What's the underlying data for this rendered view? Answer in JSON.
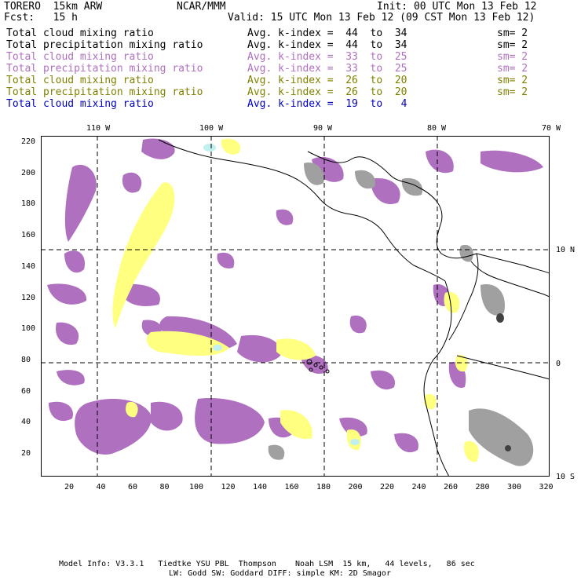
{
  "header": {
    "model": "TORERO  15km ARW",
    "org": "NCAR/MMM",
    "init": "Init: 00 UTC Mon 13 Feb 12",
    "fcst": "Fcst:   15 h",
    "valid": "Valid: 15 UTC Mon 13 Feb 12 (09 CST Mon 13 Feb 12)"
  },
  "legend": [
    {
      "field": "Total cloud mixing ratio",
      "kindex": "Avg. k-index =  44  to  34",
      "sm": "sm= 2",
      "color": "#000000"
    },
    {
      "field": "Total precipitation mixing ratio",
      "kindex": "Avg. k-index =  44  to  34",
      "sm": "sm= 2",
      "color": "#000000"
    },
    {
      "field": "Total cloud mixing ratio",
      "kindex": "Avg. k-index =  33  to  25",
      "sm": "sm= 2",
      "color": "#b070c0"
    },
    {
      "field": "Total precipitation mixing ratio",
      "kindex": "Avg. k-index =  33  to  25",
      "sm": "sm= 2",
      "color": "#b070c0"
    },
    {
      "field": "Total cloud mixing ratio",
      "kindex": "Avg. k-index =  26  to  20",
      "sm": "sm= 2",
      "color": "#808000"
    },
    {
      "field": "Total precipitation mixing ratio",
      "kindex": "Avg. k-index =  26  to  20",
      "sm": "sm= 2",
      "color": "#808000"
    },
    {
      "field": "Total cloud mixing ratio",
      "kindex": "Avg. k-index =  19  to   4",
      "sm": "",
      "color": "#0000c0"
    }
  ],
  "lon_labels": [
    "110 W",
    "100 W",
    "90 W",
    "80 W",
    "70 W"
  ],
  "lat_labels": [
    "10 N",
    "0",
    "10 S"
  ],
  "y_ticks": [
    "220",
    "200",
    "180",
    "160",
    "140",
    "120",
    "100",
    "80",
    "60",
    "40",
    "20"
  ],
  "x_ticks": [
    "20",
    "40",
    "60",
    "80",
    "100",
    "120",
    "140",
    "160",
    "180",
    "200",
    "220",
    "240",
    "260",
    "280",
    "300",
    "320"
  ],
  "footer": {
    "line1": "Model Info: V3.3.1   Tiedtke YSU PBL  Thompson    Noah LSM  15 km,   44 levels,   86 sec",
    "line2": "LW: Godd SW: Goddard DIFF: simple KM: 2D Smagor"
  },
  "colors": {
    "gray": "#a0a0a0",
    "dark_gray": "#404040",
    "purple": "#b070c0",
    "yellow": "#ffff80",
    "cyan": "#c0f0f0"
  }
}
